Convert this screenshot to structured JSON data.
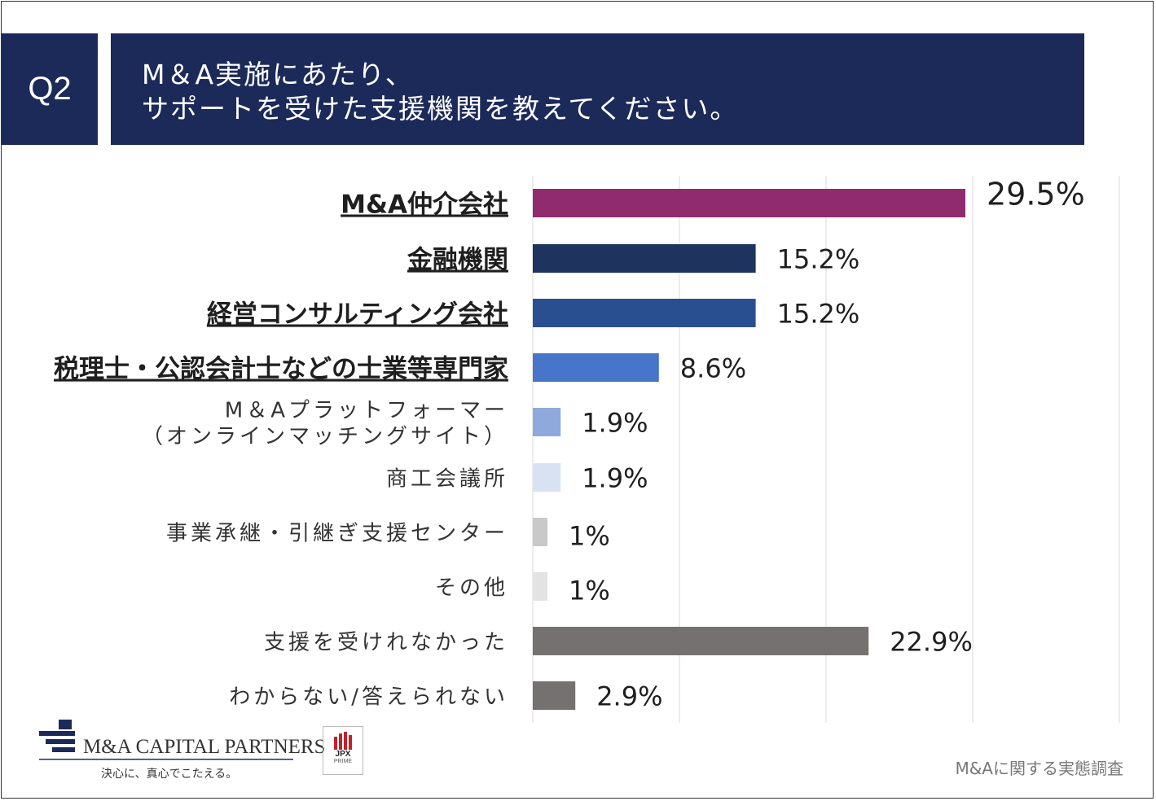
{
  "header": {
    "q_label": "Q2",
    "title_line1": "M＆A実施にあたり、",
    "title_line2": "サポートを受けた支援機関を教えてください。",
    "bg_color": "#1c2a5a"
  },
  "chart_data": {
    "type": "bar",
    "orientation": "horizontal",
    "title": "M＆A実施にあたり、サポートを受けた支援機関を教えてください。",
    "unit": "%",
    "xlim": [
      0,
      40
    ],
    "grid": true,
    "bars": [
      {
        "label": "M&A仲介会社",
        "label_lines": [
          "M&A仲介会社"
        ],
        "value": 29.5,
        "value_label": "29.5%",
        "color": "#902b6f",
        "style": "bold"
      },
      {
        "label": "金融機関",
        "label_lines": [
          "金融機関"
        ],
        "value": 15.2,
        "value_label": "15.2%",
        "color": "#1e335e",
        "style": "bold"
      },
      {
        "label": "経営コンサルティング会社",
        "label_lines": [
          "経営コンサルティング会社"
        ],
        "value": 15.2,
        "value_label": "15.2%",
        "color": "#2a4f91",
        "style": "bold"
      },
      {
        "label": "税理士・公認会計士などの士業等専門家",
        "label_lines": [
          "税理士・公認会計士などの士業等専門家"
        ],
        "value": 8.6,
        "value_label": "8.6%",
        "color": "#4675c9",
        "style": "bold"
      },
      {
        "label": "M＆Aプラットフォーマー（オンラインマッチングサイト）",
        "label_lines": [
          "M＆Aプラットフォーマー",
          "（オンラインマッチングサイト）"
        ],
        "value": 1.9,
        "value_label": "1.9%",
        "color": "#8fa9dc",
        "style": "normal"
      },
      {
        "label": "商工会議所",
        "label_lines": [
          "商工会議所"
        ],
        "value": 1.9,
        "value_label": "1.9%",
        "color": "#d9e2f3",
        "style": "normal"
      },
      {
        "label": "事業承継・引継ぎ支援センター",
        "label_lines": [
          "事業承継・引継ぎ支援センター"
        ],
        "value": 1,
        "value_label": "1%",
        "color": "#c9c9c9",
        "style": "normal"
      },
      {
        "label": "その他",
        "label_lines": [
          "その他"
        ],
        "value": 1,
        "value_label": "1%",
        "color": "#e3e3e3",
        "style": "normal"
      },
      {
        "label": "支援を受けれなかった",
        "label_lines": [
          "支援を受けれなかった"
        ],
        "value": 22.9,
        "value_label": "22.9%",
        "color": "#767171",
        "style": "normal"
      },
      {
        "label": "わからない/答えられない",
        "label_lines": [
          "わからない/答えられない"
        ],
        "value": 2.9,
        "value_label": "2.9%",
        "color": "#767171",
        "style": "normal"
      }
    ]
  },
  "footer": {
    "company_name": "M&A CAPITAL PARTNERS",
    "company_tagline": "決心に、真心でこたえる。",
    "jpx_label": "JPX",
    "jpx_sub": "PRIME",
    "source": "M&Aに関する実態調査"
  }
}
